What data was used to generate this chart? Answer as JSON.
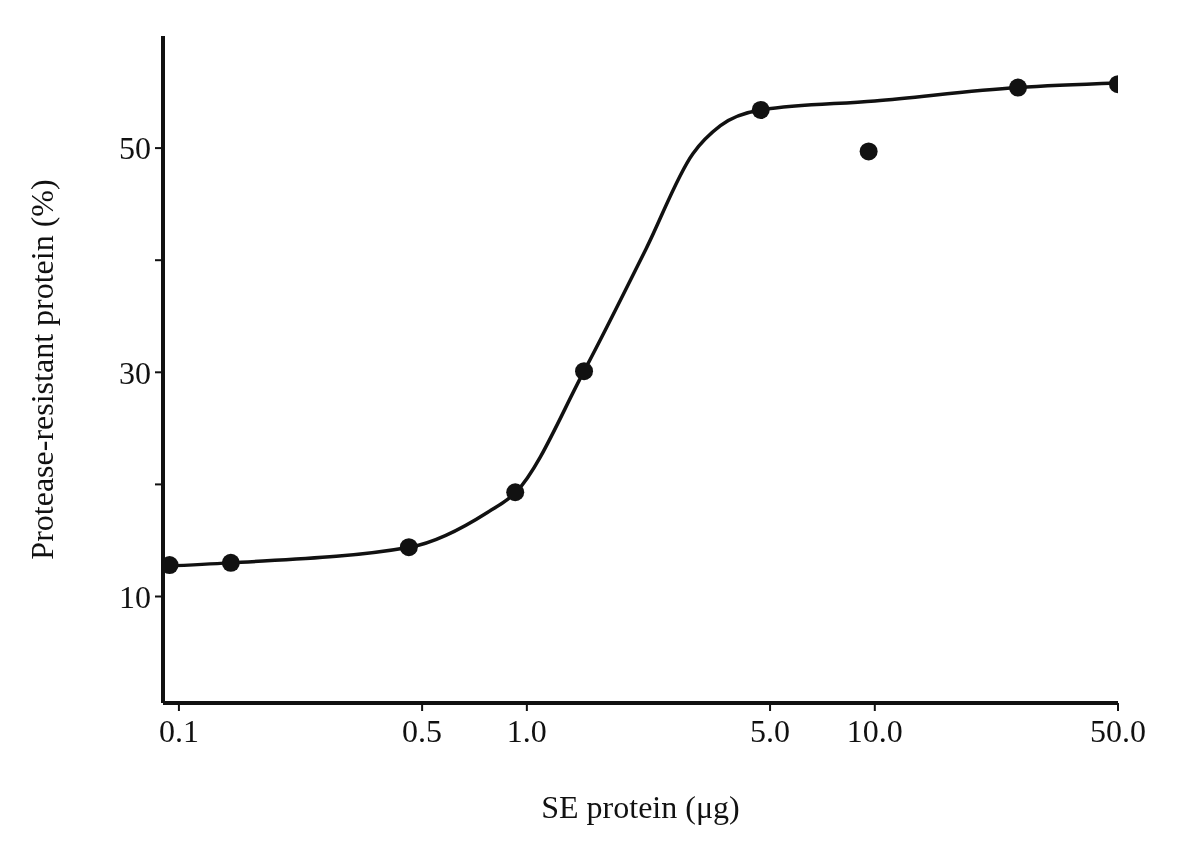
{
  "chart_data": {
    "type": "scatter",
    "xlabel": "SE protein (μg)",
    "ylabel": "Protease-resistant protein (%)",
    "log": "x",
    "xlim": [
      0.09,
      50
    ],
    "ylim": [
      0.5,
      60
    ],
    "xticks": [
      0.1,
      0.5,
      {
        "value": 1,
        "label": "1.0"
      },
      {
        "value": 5,
        "label": "5.0"
      },
      {
        "value": 10,
        "label": "10.0"
      },
      {
        "value": 50,
        "label": "50.0"
      }
    ],
    "yticks": [
      10,
      {
        "value": 20,
        "label": null
      },
      30,
      {
        "value": 40,
        "label": null
      },
      50
    ],
    "grid": false,
    "marker": "circle",
    "series": [
      {
        "type": "line",
        "color": "#111111",
        "line_style": "solid",
        "marker": "none",
        "x": [
          0.09,
          0.14,
          0.46,
          0.77,
          0.93,
          1.46,
          2.2,
          3.0,
          3.6,
          4.7,
          10,
          25.8,
          50
        ],
        "values": [
          12.7,
          13.0,
          14.4,
          17.5,
          19.3,
          30.1,
          41,
          49.5,
          52,
          53.4,
          54.2,
          55.4,
          55.8
        ]
      },
      {
        "color": "#111111",
        "x": [
          0.094,
          0.141,
          0.458,
          0.926,
          1.46,
          4.7,
          9.6,
          25.8,
          50
        ],
        "values": [
          12.8,
          13.0,
          14.4,
          19.3,
          30.1,
          53.4,
          49.7,
          55.4,
          55.7
        ]
      }
    ]
  }
}
